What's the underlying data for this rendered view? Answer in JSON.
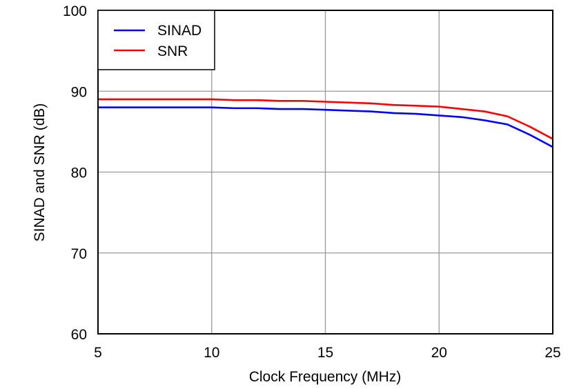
{
  "chart_data": {
    "type": "line",
    "title": "",
    "xlabel": "Clock Frequency (MHz)",
    "ylabel": "SINAD and SNR (dB)",
    "xlim": [
      5,
      25
    ],
    "ylim": [
      60,
      100
    ],
    "xticks": [
      5,
      10,
      15,
      20,
      25
    ],
    "yticks": [
      60,
      70,
      80,
      90,
      100
    ],
    "grid": true,
    "legend": "top-left",
    "x": [
      5,
      6,
      7,
      8,
      9,
      10,
      11,
      12,
      13,
      14,
      15,
      16,
      17,
      18,
      19,
      20,
      21,
      22,
      23,
      24,
      25
    ],
    "series": [
      {
        "name": "SINAD",
        "color": "#0000ff",
        "values": [
          88.0,
          88.0,
          88.0,
          88.0,
          88.0,
          88.0,
          87.9,
          87.9,
          87.8,
          87.8,
          87.7,
          87.6,
          87.5,
          87.3,
          87.2,
          87.0,
          86.8,
          86.4,
          85.9,
          84.6,
          83.1
        ]
      },
      {
        "name": "SNR",
        "color": "#ff0000",
        "values": [
          89.0,
          89.0,
          89.0,
          89.0,
          89.0,
          89.0,
          88.9,
          88.9,
          88.8,
          88.8,
          88.7,
          88.6,
          88.5,
          88.3,
          88.2,
          88.1,
          87.8,
          87.5,
          86.9,
          85.6,
          84.1
        ]
      }
    ]
  }
}
